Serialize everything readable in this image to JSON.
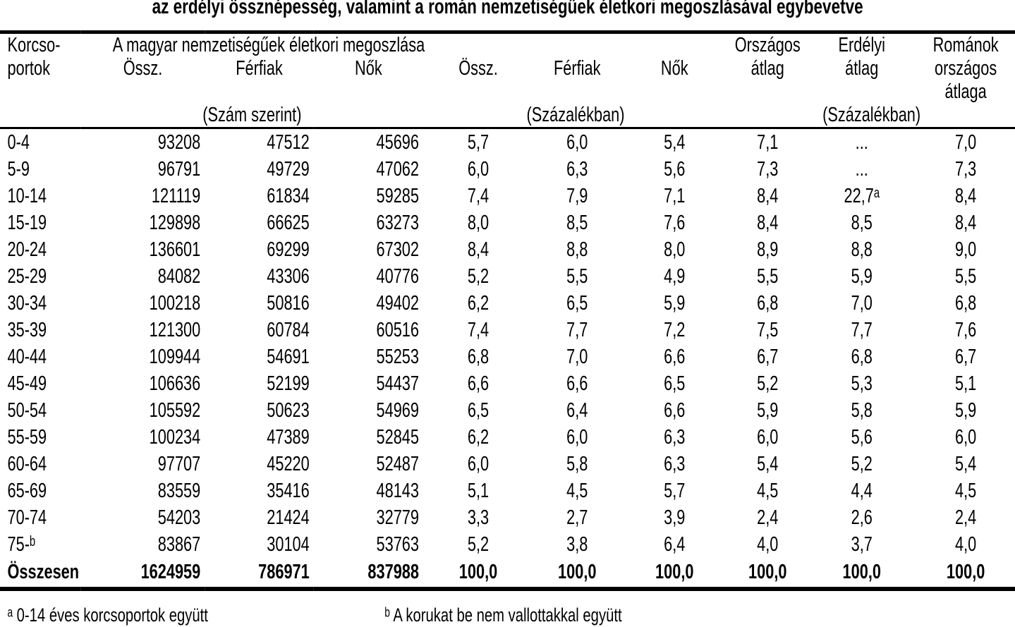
{
  "title": "az erdélyi össznépesség, valamint a román nemzetiségűek életkori megoszlásával egybevetve",
  "table": {
    "header": {
      "age_col_line1": "Korcso-",
      "age_col_line2": "portok",
      "magyar_span": "A magyar nemzetiségűek életkori megoszlása",
      "count_total": "Össz.",
      "count_men": "Férfiak",
      "count_women": "Nők",
      "pct_total": "Össz.",
      "pct_men": "Férfiak",
      "pct_women": "Nők",
      "national_avg_line1": "Országos",
      "national_avg_line2": "átlag",
      "transylvanian_avg_line1": "Erdélyi",
      "transylvanian_avg_line2": "átlag",
      "romanian_avg_line1": "Románok",
      "romanian_avg_line2": "országos",
      "romanian_avg_line3": "átlaga",
      "sub_count": "(Szám szerint)",
      "sub_pct1": "(Százalékban)",
      "sub_pct2": "(Százalékban)"
    },
    "rows": [
      [
        "0-4",
        "93208",
        "47512",
        "45696",
        "5,7",
        "6,0",
        "5,4",
        "7,1",
        "...",
        "7,0"
      ],
      [
        "5-9",
        "96791",
        "49729",
        "47062",
        "6,0",
        "6,3",
        "5,6",
        "7,3",
        "...",
        "7,3"
      ],
      [
        "10-14",
        "121119",
        "61834",
        "59285",
        "7,4",
        "7,9",
        "7,1",
        "8,4",
        "22,7ᵃ",
        "8,4"
      ],
      [
        "15-19",
        "129898",
        "66625",
        "63273",
        "8,0",
        "8,5",
        "7,6",
        "8,4",
        "8,5",
        "8,4"
      ],
      [
        "20-24",
        "136601",
        "69299",
        "67302",
        "8,4",
        "8,8",
        "8,0",
        "8,9",
        "8,8",
        "9,0"
      ],
      [
        "25-29",
        "84082",
        "43306",
        "40776",
        "5,2",
        "5,5",
        "4,9",
        "5,5",
        "5,9",
        "5,5"
      ],
      [
        "30-34",
        "100218",
        "50816",
        "49402",
        "6,2",
        "6,5",
        "5,9",
        "6,8",
        "7,0",
        "6,8"
      ],
      [
        "35-39",
        "121300",
        "60784",
        "60516",
        "7,4",
        "7,7",
        "7,2",
        "7,5",
        "7,7",
        "7,6"
      ],
      [
        "40-44",
        "109944",
        "54691",
        "55253",
        "6,8",
        "7,0",
        "6,6",
        "6,7",
        "6,8",
        "6,7"
      ],
      [
        "45-49",
        "106636",
        "52199",
        "54437",
        "6,6",
        "6,6",
        "6,5",
        "5,2",
        "5,3",
        "5,1"
      ],
      [
        "50-54",
        "105592",
        "50623",
        "54969",
        "6,5",
        "6,4",
        "6,6",
        "5,9",
        "5,8",
        "5,9"
      ],
      [
        "55-59",
        "100234",
        "47389",
        "52845",
        "6,2",
        "6,0",
        "6,3",
        "6,0",
        "5,6",
        "6,0"
      ],
      [
        "60-64",
        "97707",
        "45220",
        "52487",
        "6,0",
        "5,8",
        "6,3",
        "5,4",
        "5,2",
        "5,4"
      ],
      [
        "65-69",
        "83559",
        "35416",
        "48143",
        "5,1",
        "4,5",
        "5,7",
        "4,5",
        "4,4",
        "4,5"
      ],
      [
        "70-74",
        "54203",
        "21424",
        "32779",
        "3,3",
        "2,7",
        "3,9",
        "2,4",
        "2,6",
        "2,4"
      ],
      [
        "75-ᵇ",
        "83867",
        "30104",
        "53763",
        "5,2",
        "3,8",
        "6,4",
        "4,0",
        "3,7",
        "4,0"
      ]
    ],
    "total": {
      "label": "Összesen",
      "values": [
        "1624959",
        "786971",
        "837988",
        "100,0",
        "100,0",
        "100,0",
        "100,0",
        "100,0",
        "100,0"
      ]
    }
  },
  "footnotes": {
    "a": "ᵃ 0-14 éves korcsoportok együtt",
    "b": "ᵇ A korukat be nem vallottakkal együtt"
  }
}
